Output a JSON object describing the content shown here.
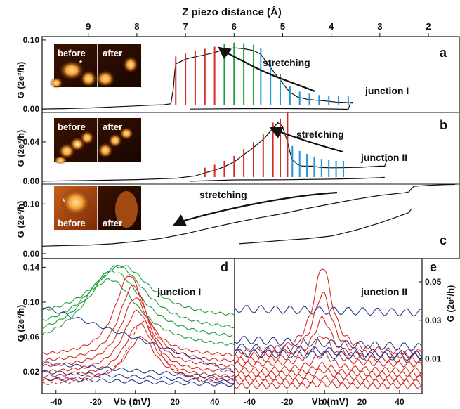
{
  "top_axis": {
    "title": "Z piezo distance (Å)",
    "ticks": [
      9,
      8,
      7,
      6,
      5,
      4,
      3,
      2
    ]
  },
  "colors": {
    "red": "#d62a22",
    "green": "#1f9e3a",
    "cyan": "#1e96d2",
    "navy": "#2a3a8f",
    "black": "#111111",
    "inset_bright": "#ffb040",
    "inset_dark": "#6a2400"
  },
  "panels": [
    {
      "letter": "a",
      "label": "junction I",
      "annotation": "stretching",
      "inset_labels": [
        "before",
        "after"
      ],
      "ylabel": "G (2e²/h)",
      "yticks": [
        "0.00",
        "0.10"
      ]
    },
    {
      "letter": "b",
      "label": "junction II",
      "annotation": "stretching",
      "inset_labels": [
        "before",
        "after"
      ],
      "ylabel": "G (2e²/h)",
      "yticks": [
        "0.00",
        "0.04"
      ]
    },
    {
      "letter": "c",
      "label": "",
      "annotation": "stretching",
      "inset_labels": [
        "before",
        "after"
      ],
      "ylabel": "G (2e²/h)",
      "yticks": [
        "0.00",
        "0.10"
      ]
    },
    {
      "letter": "d",
      "label": "junction I",
      "xlabel": "Vb (mV)",
      "ylabel": "G (2e²/h)",
      "yticks": [
        "0.02",
        "0.06",
        "0.10",
        "0.14"
      ],
      "xticks": [
        "-40",
        "-20",
        "0",
        "20",
        "40"
      ]
    },
    {
      "letter": "e",
      "label": "junction II",
      "xlabel": "Vb (mV)",
      "ylabel": "G (2e²/h)",
      "yticks": [
        "0.01",
        "0.03",
        "0.05"
      ],
      "xticks": [
        "-40",
        "-20",
        "0",
        "20",
        "40"
      ]
    }
  ],
  "chart_data": [
    {
      "type": "line",
      "panel": "a",
      "xlabel": "Z piezo distance (Å)",
      "ylabel": "G (2e²/h)",
      "xlim": [
        9.95,
        1.35
      ],
      "ylim": [
        -0.005,
        0.105
      ],
      "series": [
        {
          "color": "black",
          "x": [
            9.95,
            9.5,
            9.0,
            8.5,
            8.0,
            7.7,
            7.45,
            7.3,
            7.25,
            7.22,
            7.2,
            7.1,
            7.0,
            6.8,
            6.6,
            6.4,
            6.2,
            6.0,
            5.8,
            5.6,
            5.45,
            5.35,
            5.25,
            5.15,
            5.05,
            4.95,
            4.85,
            4.7,
            4.5,
            4.3,
            4.1,
            3.9,
            3.7,
            3.55
          ],
          "y": [
            0.0,
            0.001,
            0.002,
            0.003,
            0.004,
            0.005,
            0.006,
            0.008,
            0.03,
            0.055,
            0.065,
            0.068,
            0.072,
            0.076,
            0.079,
            0.082,
            0.086,
            0.088,
            0.087,
            0.085,
            0.08,
            0.07,
            0.06,
            0.05,
            0.042,
            0.033,
            0.025,
            0.018,
            0.014,
            0.012,
            0.011,
            0.01,
            0.01,
            0.009
          ]
        },
        {
          "color": "black",
          "x": [
            6.9,
            6.0,
            5.0,
            4.0,
            3.65,
            3.6,
            3.55
          ],
          "y": [
            0.0,
            0.0,
            0.0,
            0.0,
            0.0,
            0.01,
            0.01
          ]
        }
      ],
      "sticks": [
        {
          "color": "red",
          "x": [
            7.2,
            7.0,
            6.8,
            6.6,
            6.4
          ],
          "y": [
            0.068,
            0.072,
            0.076,
            0.079,
            0.082
          ]
        },
        {
          "color": "green",
          "x": [
            6.2,
            6.0,
            5.8,
            5.6
          ],
          "y": [
            0.086,
            0.088,
            0.087,
            0.085
          ]
        },
        {
          "color": "cyan",
          "x": [
            5.45,
            5.25,
            5.05,
            4.85,
            4.65,
            4.45,
            4.25,
            4.05,
            3.85,
            3.65
          ],
          "y": [
            0.08,
            0.06,
            0.042,
            0.025,
            0.017,
            0.014,
            0.012,
            0.011,
            0.01,
            0.01
          ]
        }
      ]
    },
    {
      "type": "line",
      "panel": "b",
      "xlabel": "Z piezo distance (Å)",
      "ylabel": "G (2e²/h)",
      "xlim": [
        9.95,
        1.35
      ],
      "ylim": [
        -0.003,
        0.07
      ],
      "series": [
        {
          "color": "black",
          "x": [
            9.95,
            9.0,
            8.0,
            7.2,
            6.8,
            6.6,
            6.4,
            6.2,
            6.0,
            5.8,
            5.6,
            5.4,
            5.3,
            5.2,
            5.1,
            5.05,
            5.0,
            4.95,
            4.9,
            4.85,
            4.8,
            4.75,
            4.7,
            4.6,
            4.4,
            4.2,
            4.0,
            3.8,
            3.4,
            3.0,
            2.9,
            2.85
          ],
          "y": [
            0.0,
            0.001,
            0.002,
            0.003,
            0.005,
            0.008,
            0.011,
            0.015,
            0.02,
            0.027,
            0.034,
            0.042,
            0.048,
            0.054,
            0.06,
            0.058,
            0.055,
            0.047,
            0.04,
            0.03,
            0.022,
            0.02,
            0.017,
            0.015,
            0.015,
            0.014,
            0.014,
            0.014,
            0.014,
            0.015,
            0.015,
            0.022
          ]
        },
        {
          "color": "black",
          "x": [
            6.9,
            6.0,
            5.0,
            4.0,
            3.4,
            3.0,
            2.9
          ],
          "y": [
            0.0,
            0.001,
            0.001,
            0.002,
            0.003,
            0.004,
            0.004
          ]
        }
      ],
      "sticks": [
        {
          "color": "red",
          "x": [
            6.6,
            6.4,
            6.2,
            6.0,
            5.8,
            5.6,
            5.4,
            5.2,
            5.05,
            4.9
          ],
          "y": [
            0.008,
            0.011,
            0.015,
            0.02,
            0.027,
            0.034,
            0.042,
            0.054,
            0.058,
            0.065
          ]
        },
        {
          "color": "cyan",
          "x": [
            4.8,
            4.65,
            4.5,
            4.35,
            4.2,
            4.05,
            3.9,
            3.75
          ],
          "y": [
            0.03,
            0.025,
            0.022,
            0.019,
            0.017,
            0.016,
            0.015,
            0.015
          ]
        }
      ]
    },
    {
      "type": "line",
      "panel": "c",
      "xlabel": "Z piezo distance (Å)",
      "ylabel": "G (2e²/h)",
      "xlim": [
        9.95,
        1.35
      ],
      "ylim": [
        -0.01,
        0.14
      ],
      "series": [
        {
          "color": "black",
          "x": [
            9.95,
            9.5,
            9.0,
            8.5,
            8.0,
            7.5,
            7.0,
            6.5,
            6.0,
            5.5,
            5.0,
            4.5,
            4.0,
            3.5,
            3.0,
            2.5,
            2.4,
            2.35,
            2.3,
            2.0,
            1.6,
            1.45
          ],
          "y": [
            0.015,
            0.017,
            0.018,
            0.02,
            0.024,
            0.03,
            0.04,
            0.052,
            0.063,
            0.072,
            0.08,
            0.09,
            0.1,
            0.11,
            0.118,
            0.123,
            0.124,
            0.13,
            0.135,
            0.138,
            0.14,
            0.14
          ]
        },
        {
          "color": "black",
          "x": [
            5.9,
            5.5,
            5.0,
            4.5,
            4.0,
            3.5,
            3.0,
            2.6,
            2.4,
            2.35
          ],
          "y": [
            0.02,
            0.022,
            0.026,
            0.03,
            0.036,
            0.048,
            0.062,
            0.075,
            0.082,
            0.09
          ]
        }
      ]
    },
    {
      "type": "line",
      "panel": "d",
      "xlabel": "Vb (mV)",
      "ylabel": "G (2e²/h)",
      "xlim": [
        -47,
        50
      ],
      "ylim": [
        -0.005,
        0.15
      ],
      "series": [
        {
          "color": "green",
          "peak": [
            -7,
            0.142
          ],
          "baseline": 0.08
        },
        {
          "color": "green",
          "peak": [
            -9,
            0.141
          ],
          "baseline": 0.065
        },
        {
          "color": "green",
          "peak": [
            -11,
            0.135
          ],
          "baseline": 0.055
        },
        {
          "color": "green",
          "peak": [
            -13,
            0.126
          ],
          "baseline": 0.045
        },
        {
          "color": "red",
          "peak": [
            -3,
            0.131
          ],
          "baseline": 0.037
        },
        {
          "color": "red",
          "peak": [
            -1,
            0.119
          ],
          "baseline": 0.03
        },
        {
          "color": "red",
          "peak": [
            0,
            0.105
          ],
          "baseline": 0.024
        },
        {
          "color": "red",
          "peak": [
            1,
            0.09
          ],
          "baseline": 0.018
        },
        {
          "color": "red",
          "peak": [
            2,
            0.075
          ],
          "baseline": 0.013
        },
        {
          "color": "red",
          "peak": [
            3,
            0.06
          ],
          "baseline": 0.009
        },
        {
          "color": "red",
          "peak": [
            4,
            0.078
          ],
          "baseline": 0.004,
          "dashed": true
        },
        {
          "color": "navy",
          "peak": [
            -45,
            0.095
          ],
          "baseline": 0.02
        },
        {
          "color": "navy",
          "peak": [
            -20,
            0.03
          ],
          "baseline": 0.012
        },
        {
          "color": "navy",
          "peak": [
            -10,
            0.02
          ],
          "baseline": 0.008
        },
        {
          "color": "navy",
          "peak": [
            0,
            0.012
          ],
          "baseline": 0.005
        }
      ]
    },
    {
      "type": "line",
      "panel": "e",
      "xlabel": "Vb (mV)",
      "ylabel": "G (2e²/h)",
      "xlim": [
        -48,
        52
      ],
      "ylim": [
        -0.008,
        0.062
      ],
      "series": [
        {
          "color": "red",
          "peak": [
            -1,
            0.058
          ],
          "baseline": 0.013
        },
        {
          "color": "red",
          "peak": [
            -1,
            0.044
          ],
          "baseline": 0.011
        },
        {
          "color": "red",
          "peak": [
            -1,
            0.031
          ],
          "baseline": 0.009
        },
        {
          "color": "red",
          "peak": [
            -1,
            0.022
          ],
          "baseline": 0.007
        },
        {
          "color": "red",
          "peak": [
            -1,
            0.013
          ],
          "baseline": 0.004
        },
        {
          "color": "red",
          "peak": [
            -1,
            0.007
          ],
          "baseline": 0.002
        },
        {
          "color": "red",
          "peak": [
            -1,
            0.004
          ],
          "baseline": 0.0
        },
        {
          "color": "red",
          "peak": [
            -1,
            0.0
          ],
          "baseline": -0.002
        },
        {
          "color": "red",
          "peak": [
            -1,
            -0.003
          ],
          "baseline": -0.004
        },
        {
          "color": "navy",
          "peak": [
            -48,
            0.036
          ],
          "baseline": 0.034
        },
        {
          "color": "navy",
          "peak": [
            -48,
            0.02
          ],
          "baseline": 0.016
        },
        {
          "color": "navy",
          "peak": [
            -48,
            0.016
          ],
          "baseline": 0.012
        },
        {
          "color": "navy",
          "peak": [
            -48,
            0.013
          ],
          "baseline": 0.011
        }
      ]
    }
  ]
}
